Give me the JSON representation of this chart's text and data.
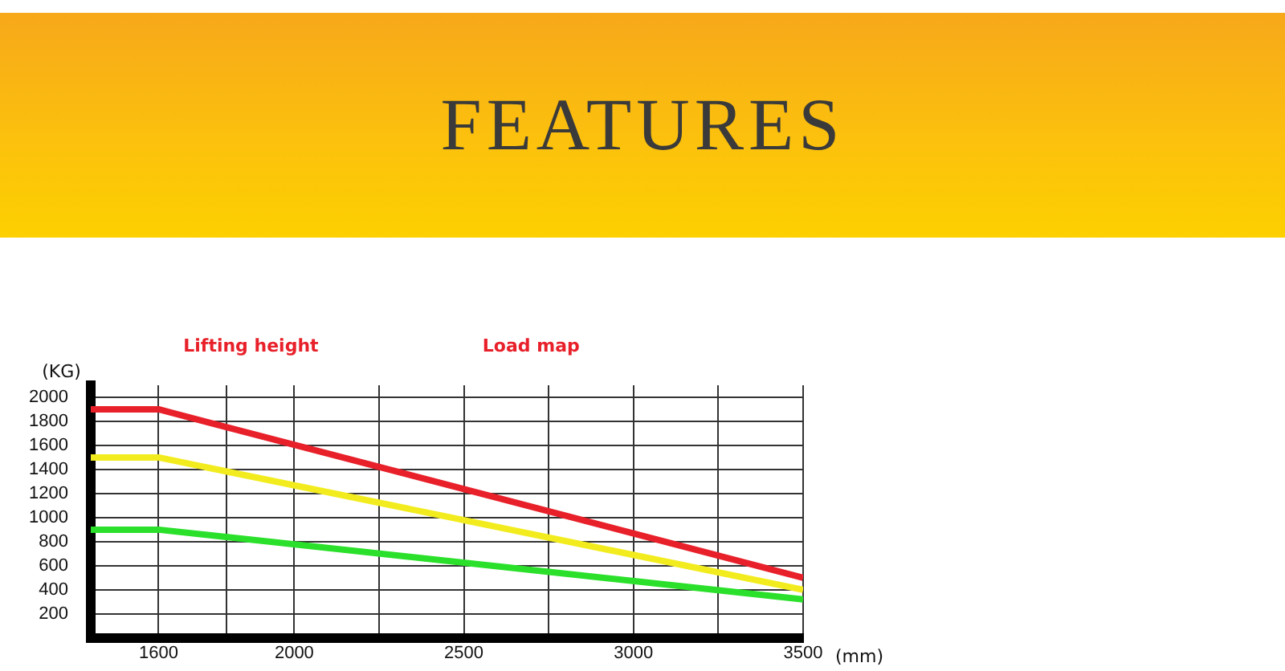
{
  "chart_data": {
    "type": "line",
    "title": "FEATURES",
    "xlabel": "(mm)",
    "ylabel": "(KG)",
    "annotations": [
      "Lifting height",
      "Load map"
    ],
    "x": [
      1400,
      1600,
      3500
    ],
    "series": [
      {
        "color": "#e8202a",
        "values": [
          1900,
          1900,
          500
        ]
      },
      {
        "color": "#f2ec1e",
        "values": [
          1500,
          1500,
          400
        ]
      },
      {
        "color": "#2ae02a",
        "values": [
          900,
          900,
          320
        ]
      }
    ],
    "xlim": [
      1400,
      3500
    ],
    "xticks": [
      1600,
      {
        "value": 1800,
        "label": null
      },
      2000,
      {
        "value": 2250,
        "label": null
      },
      2500,
      {
        "value": 2750,
        "label": null
      },
      3000,
      {
        "value": 3250,
        "label": null
      },
      3500
    ],
    "ylim": [
      0,
      2100
    ],
    "yticks": [
      200,
      400,
      600,
      800,
      1000,
      1200,
      1400,
      1600,
      1800,
      2000
    ],
    "grid": true,
    "legend": false,
    "marker": "none",
    "line_style": "solid"
  }
}
